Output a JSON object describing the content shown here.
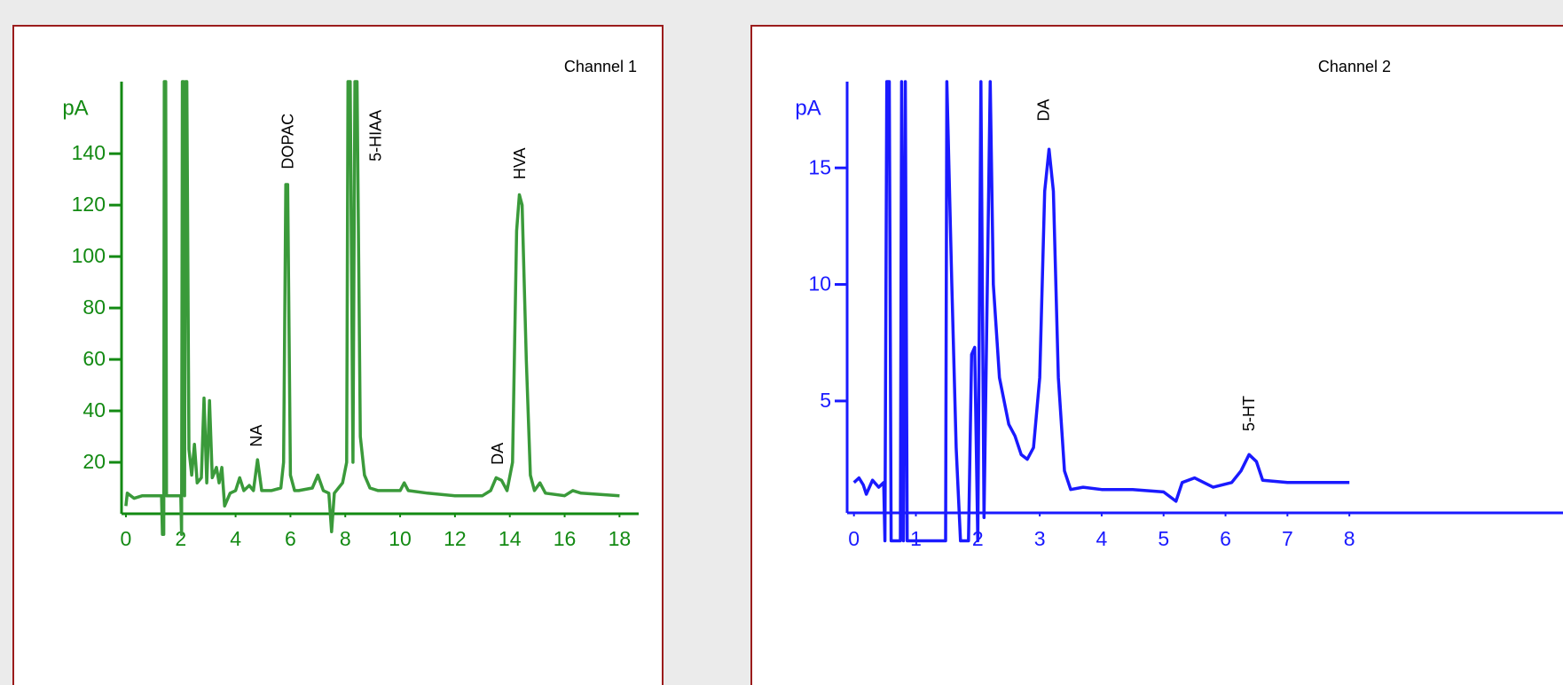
{
  "chart_data": [
    {
      "type": "line",
      "title": "Channel 1",
      "y_label": "pA",
      "color": "#3a9a3a",
      "axis_color": "#138a13",
      "x": [
        0,
        0.05,
        0.3,
        0.6,
        1.2,
        1.3,
        1.33,
        1.38,
        1.4,
        1.45,
        1.48,
        2.0,
        2.03,
        2.06,
        2.1,
        2.14,
        2.18,
        2.22,
        2.3,
        2.4,
        2.5,
        2.6,
        2.75,
        2.85,
        2.95,
        3.05,
        3.15,
        3.3,
        3.4,
        3.5,
        3.6,
        3.8,
        4.0,
        4.15,
        4.3,
        4.5,
        4.65,
        4.8,
        4.95,
        5.3,
        5.65,
        5.75,
        5.83,
        5.9,
        6.0,
        6.15,
        6.3,
        6.8,
        7.0,
        7.2,
        7.4,
        7.5,
        7.6,
        7.9,
        8.05,
        8.1,
        8.18,
        8.28,
        8.35,
        8.43,
        8.55,
        8.7,
        8.9,
        9.2,
        9.5,
        10.0,
        10.15,
        10.3,
        11,
        12,
        13,
        13.3,
        13.5,
        13.7,
        13.9,
        14.1,
        14.25,
        14.35,
        14.45,
        14.6,
        14.75,
        14.9,
        15.1,
        15.3,
        16,
        16.3,
        16.6,
        18
      ],
      "values": [
        3,
        8,
        6,
        7,
        7,
        7,
        -8,
        -8,
        168,
        168,
        7,
        7,
        -8,
        168,
        168,
        7,
        168,
        168,
        25,
        15,
        27,
        12,
        14,
        45,
        12,
        44,
        14,
        18,
        12,
        18,
        3,
        8,
        9,
        14,
        9,
        11,
        9,
        21,
        9,
        9,
        10,
        20,
        128,
        128,
        15,
        9,
        9,
        10,
        15,
        9,
        8,
        -7,
        8,
        12,
        20,
        168,
        168,
        20,
        168,
        168,
        30,
        15,
        10,
        9,
        9,
        9,
        12,
        9,
        8,
        7,
        7,
        9,
        14,
        13,
        9,
        20,
        110,
        124,
        120,
        60,
        15,
        9,
        12,
        8,
        7,
        9,
        8,
        7
      ],
      "xlim": [
        -0.16,
        18.7
      ],
      "ylim": [
        0,
        168
      ],
      "xticks": [
        0,
        2,
        4,
        6,
        8,
        10,
        12,
        14,
        16,
        18
      ],
      "yticks": [
        20,
        40,
        60,
        80,
        100,
        120,
        140
      ],
      "annotations": [
        {
          "text": "NA",
          "x": 4.8,
          "y": 26
        },
        {
          "text": "DOPAC",
          "x": 5.95,
          "y": 134
        },
        {
          "text": "5-HIAA",
          "x": 9.15,
          "y": 137
        },
        {
          "text": "DA",
          "x": 13.6,
          "y": 19
        },
        {
          "text": "HVA",
          "x": 14.4,
          "y": 130
        }
      ]
    },
    {
      "type": "line",
      "title": "Channel 2",
      "y_label": "pA",
      "color": "#1a1aff",
      "axis_color": "#1a1aff",
      "x": [
        0,
        0.08,
        0.15,
        0.2,
        0.3,
        0.4,
        0.48,
        0.5,
        0.53,
        0.57,
        0.6,
        0.75,
        0.77,
        0.8,
        0.83,
        0.86,
        1.48,
        1.5,
        1.58,
        1.65,
        1.72,
        1.85,
        1.9,
        1.95,
        2.0,
        2.05,
        2.1,
        2.2,
        2.25,
        2.35,
        2.5,
        2.6,
        2.7,
        2.8,
        2.9,
        3.0,
        3.08,
        3.15,
        3.22,
        3.3,
        3.4,
        3.5,
        3.7,
        4,
        4.5,
        5,
        5.1,
        5.2,
        5.3,
        5.5,
        5.8,
        6.1,
        6.25,
        6.38,
        6.5,
        6.6,
        7,
        7.5,
        8
      ],
      "values": [
        1.5,
        1.7,
        1.4,
        1.0,
        1.6,
        1.3,
        1.5,
        -1,
        18.7,
        18.7,
        -1,
        -1,
        18.7,
        -1,
        18.7,
        -1,
        -1,
        18.7,
        10,
        3,
        -1,
        -1,
        7.0,
        7.3,
        -1,
        18.7,
        0,
        18.7,
        10,
        6,
        4,
        3.5,
        2.7,
        2.5,
        3,
        6,
        14,
        15.8,
        14,
        6,
        2,
        1.2,
        1.3,
        1.2,
        1.2,
        1.1,
        0.9,
        0.7,
        1.5,
        1.7,
        1.3,
        1.5,
        2,
        2.7,
        2.4,
        1.6,
        1.5,
        1.5,
        1.5
      ],
      "xlim": [
        -0.11,
        11.45
      ],
      "ylim": [
        0.2,
        18.7
      ],
      "xticks": [
        0,
        1,
        2,
        3,
        4,
        5,
        6,
        7,
        8
      ],
      "yticks": [
        5,
        10,
        15
      ],
      "annotations": [
        {
          "text": "DA",
          "x": 3.08,
          "y": 17
        },
        {
          "text": "5-HT",
          "x": 6.4,
          "y": 3.7
        }
      ]
    }
  ]
}
